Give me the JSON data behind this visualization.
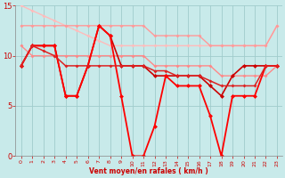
{
  "xlabel": "Vent moyen/en rafales ( km/h )",
  "xlim": [
    -0.5,
    23.5
  ],
  "ylim": [
    0,
    15
  ],
  "yticks": [
    0,
    5,
    10,
    15
  ],
  "xticks": [
    0,
    1,
    2,
    3,
    4,
    5,
    6,
    7,
    8,
    9,
    10,
    11,
    12,
    13,
    14,
    15,
    16,
    17,
    18,
    19,
    20,
    21,
    22,
    23
  ],
  "bg_color": "#c8eaea",
  "grid_color": "#a0cccc",
  "lines": [
    {
      "x": [
        0,
        1,
        2,
        3,
        4,
        5,
        6,
        7,
        8,
        9,
        10,
        11,
        12,
        13,
        14,
        15,
        16,
        17,
        18,
        19,
        20,
        21,
        22,
        23
      ],
      "y": [
        15,
        14.5,
        14,
        13.5,
        13,
        12.5,
        12,
        11.5,
        11,
        11,
        11,
        11,
        11,
        11,
        11,
        11,
        11,
        11,
        11,
        11,
        11,
        11,
        11,
        13
      ],
      "color": "#ffbbbb",
      "lw": 1.0,
      "marker": "D",
      "ms": 2.0
    },
    {
      "x": [
        0,
        1,
        2,
        3,
        4,
        5,
        6,
        7,
        8,
        9,
        10,
        11,
        12,
        13,
        14,
        15,
        16,
        17,
        18,
        19,
        20,
        21,
        22,
        23
      ],
      "y": [
        13,
        13,
        13,
        13,
        13,
        13,
        13,
        13,
        13,
        13,
        13,
        13,
        12,
        12,
        12,
        12,
        12,
        11,
        11,
        11,
        11,
        11,
        11,
        13
      ],
      "color": "#ff9999",
      "lw": 1.0,
      "marker": "D",
      "ms": 2.0
    },
    {
      "x": [
        0,
        1,
        2,
        3,
        4,
        5,
        6,
        7,
        8,
        9,
        10,
        11,
        12,
        13,
        14,
        15,
        16,
        17,
        18,
        19,
        20,
        21,
        22,
        23
      ],
      "y": [
        11,
        10,
        10,
        10,
        10,
        10,
        10,
        10,
        10,
        10,
        10,
        10,
        9,
        9,
        9,
        9,
        9,
        9,
        8,
        8,
        8,
        8,
        8,
        9
      ],
      "color": "#ff8888",
      "lw": 1.0,
      "marker": "D",
      "ms": 2.0
    },
    {
      "x": [
        0,
        1,
        2,
        3,
        4,
        5,
        6,
        7,
        8,
        9,
        10,
        11,
        12,
        13,
        14,
        15,
        16,
        17,
        18,
        19,
        20,
        21,
        22,
        23
      ],
      "y": [
        9,
        11,
        11,
        11,
        6,
        6,
        9,
        13,
        12,
        9,
        9,
        9,
        8,
        8,
        8,
        8,
        8,
        7,
        6,
        8,
        9,
        9,
        9,
        9
      ],
      "color": "#cc0000",
      "lw": 1.2,
      "marker": "D",
      "ms": 2.5
    },
    {
      "x": [
        0,
        1,
        2,
        3,
        4,
        5,
        6,
        7,
        8,
        9,
        10,
        11,
        12,
        13,
        14,
        15,
        16,
        17,
        18,
        19,
        20,
        21,
        22,
        23
      ],
      "y": [
        9,
        11,
        11,
        11,
        6,
        6,
        9,
        13,
        12,
        6,
        0,
        0,
        3,
        8,
        7,
        7,
        7,
        4,
        0,
        6,
        6,
        6,
        9,
        9
      ],
      "color": "#ff0000",
      "lw": 1.3,
      "marker": "D",
      "ms": 2.5
    },
    {
      "x": [
        0,
        1,
        2,
        3,
        4,
        5,
        6,
        7,
        8,
        9,
        10,
        11,
        12,
        13,
        14,
        15,
        16,
        17,
        18,
        19,
        20,
        21,
        22,
        23
      ],
      "y": [
        9,
        11,
        10.5,
        10,
        9,
        9,
        9,
        9,
        9,
        9,
        9,
        9,
        8.5,
        8.5,
        8,
        8,
        8,
        7.5,
        7,
        7,
        7,
        7,
        9,
        9
      ],
      "color": "#dd2222",
      "lw": 1.1,
      "marker": "D",
      "ms": 2.0
    }
  ]
}
